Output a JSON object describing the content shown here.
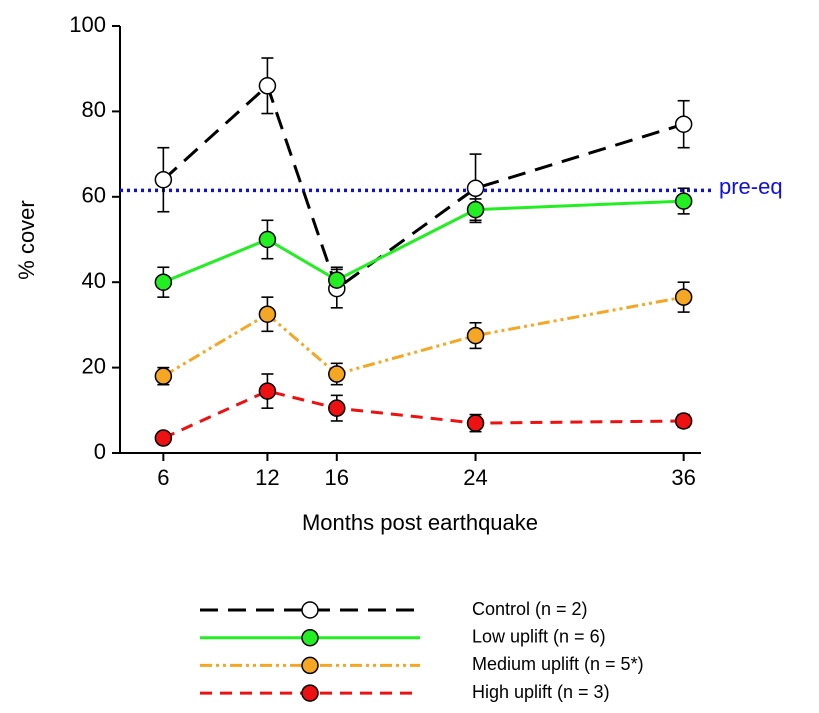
{
  "chart_data": {
    "type": "line",
    "x_label": "Months post earthquake",
    "y_label": "% cover",
    "x": [
      6,
      12,
      16,
      24,
      36
    ],
    "xlim": [
      3.5,
      37
    ],
    "xticks": [
      6,
      12,
      16,
      24,
      36
    ],
    "ylim": [
      0,
      100
    ],
    "yticks": [
      0,
      20,
      40,
      60,
      80,
      100
    ],
    "grid": false,
    "reference_line": {
      "value": 61.5,
      "label": "pre-eq",
      "color": "#1010dd"
    },
    "series": [
      {
        "name": "Control (n = 2)",
        "color": "#000000",
        "marker_fill": "#ffffff",
        "dash": "long-dash",
        "values": [
          64,
          86,
          38.5,
          62,
          77
        ],
        "errors": [
          7.5,
          6.5,
          4.5,
          8,
          5.5
        ]
      },
      {
        "name": "Low uplift (n = 6)",
        "color": "#22ee22",
        "marker_fill": "#22ee22",
        "dash": "solid",
        "values": [
          40,
          50,
          40.5,
          57,
          59
        ],
        "errors": [
          3.5,
          4.5,
          3,
          2.5,
          3
        ]
      },
      {
        "name": "Medium uplift (n = 5*)",
        "color": "#f5a623",
        "marker_fill": "#f5a623",
        "dash": "dash-dot-dot",
        "values": [
          18,
          32.5,
          18.5,
          27.5,
          36.5
        ],
        "errors": [
          2,
          4,
          2.5,
          3,
          3.5
        ]
      },
      {
        "name": "High uplift (n = 3)",
        "color": "#ee1111",
        "marker_fill": "#ee1111",
        "dash": "dash",
        "values": [
          3.5,
          14.5,
          10.5,
          7,
          7.5
        ],
        "errors": [
          0.8,
          4,
          3,
          2,
          1.5
        ]
      }
    ]
  }
}
